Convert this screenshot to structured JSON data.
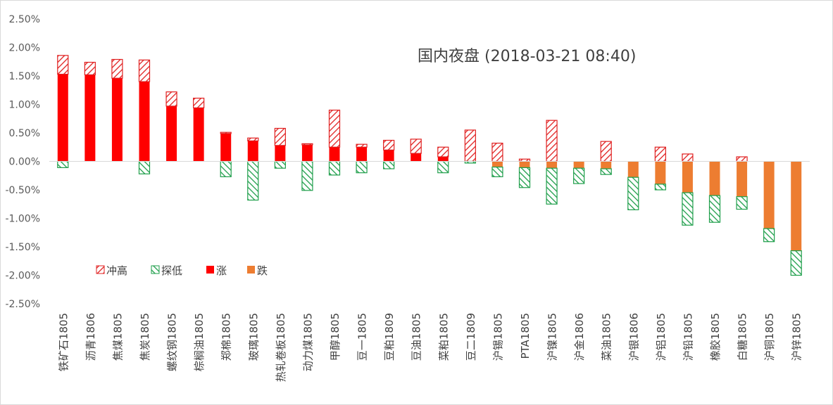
{
  "chart_data": {
    "type": "bar",
    "title": "国内夜盘 (2018-03-21 08:40)",
    "ylim": [
      -2.5,
      2.5
    ],
    "y_ticks": [
      "2.50%",
      "2.00%",
      "1.50%",
      "1.00%",
      "0.50%",
      "0.00%",
      "-0.50%",
      "-1.00%",
      "-1.50%",
      "-2.00%",
      "-2.50%"
    ],
    "grid": false,
    "legend_position": "bottom-left",
    "categories": [
      "铁矿石1805",
      "沥青1806",
      "焦煤1805",
      "焦炭1805",
      "螺纹钢1805",
      "棕榈油1805",
      "郑棉1805",
      "玻璃1805",
      "热轧卷板1805",
      "动力煤1805",
      "甲醇1805",
      "豆一1805",
      "豆粕1809",
      "豆油1805",
      "菜粕1805",
      "豆二1809",
      "沪锡1805",
      "PTA1805",
      "沪镍1805",
      "沪金1806",
      "菜油1805",
      "沪银1806",
      "沪铝1805",
      "沪铅1805",
      "橡胶1805",
      "白糖1805",
      "沪铜1805",
      "沪锌1805"
    ],
    "series": [
      {
        "name": "冲高",
        "values": [
          0.33,
          0.22,
          0.33,
          0.38,
          0.25,
          0.17,
          0.02,
          0.05,
          0.3,
          0.02,
          0.65,
          0.05,
          0.17,
          0.25,
          0.17,
          0.55,
          0.32,
          0.04,
          0.72,
          0,
          0.35,
          0,
          0.25,
          0.13,
          0,
          0.08,
          0,
          0
        ]
      },
      {
        "name": "探低",
        "values": [
          -0.11,
          0,
          0,
          -0.22,
          0,
          0,
          -0.27,
          -0.68,
          -0.12,
          -0.51,
          -0.24,
          -0.2,
          -0.13,
          0,
          -0.2,
          -0.03,
          -0.17,
          -0.35,
          -0.63,
          -0.27,
          -0.1,
          -0.57,
          -0.1,
          -0.57,
          -0.47,
          -0.22,
          -0.23,
          -0.43
        ]
      },
      {
        "name": "涨",
        "values": [
          1.53,
          1.52,
          1.46,
          1.4,
          0.97,
          0.94,
          0.49,
          0.36,
          0.28,
          0.29,
          0.25,
          0.25,
          0.2,
          0.14,
          0.08,
          0,
          0,
          0,
          0,
          0,
          0,
          0,
          0,
          0,
          0,
          0,
          0,
          0
        ]
      },
      {
        "name": "跌",
        "values": [
          0,
          0,
          0,
          0,
          0,
          0,
          0,
          0,
          0,
          0,
          0,
          0,
          0,
          0,
          0,
          0,
          -0.1,
          -0.11,
          -0.12,
          -0.12,
          -0.13,
          -0.28,
          -0.4,
          -0.55,
          -0.6,
          -0.62,
          -1.18,
          -1.57
        ]
      }
    ]
  }
}
